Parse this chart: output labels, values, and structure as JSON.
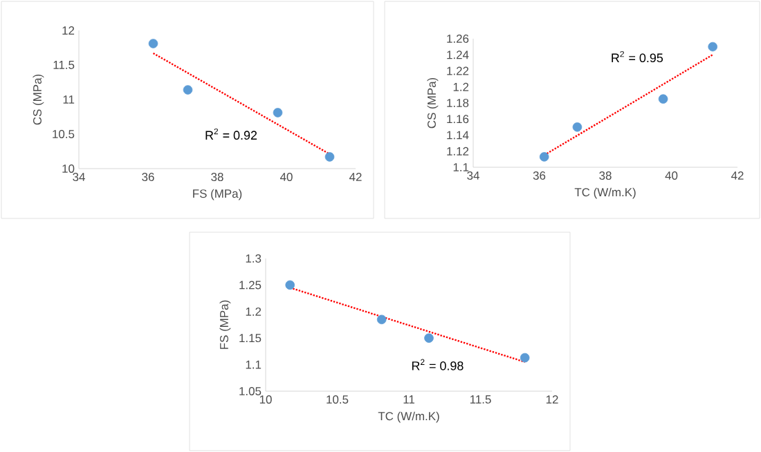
{
  "chart_data": [
    {
      "type": "scatter",
      "xlabel": "FS (MPa)",
      "ylabel": "CS (MPa)",
      "xlim": [
        34,
        42
      ],
      "xticks": [
        34,
        36,
        38,
        40,
        42
      ],
      "ylim": [
        10,
        12
      ],
      "yticks": [
        10,
        10.5,
        11,
        11.5,
        12
      ],
      "annotations": [
        "R$^{2}$ = 0.92"
      ],
      "series": [
        {
          "marker": "circle",
          "color": "#5b9bd5",
          "x": [
            36.15,
            37.15,
            39.75,
            41.25
          ],
          "values": [
            11.81,
            11.14,
            10.81,
            10.17
          ]
        },
        {
          "type": "line",
          "color": "#ff0000",
          "line_style": "dotted",
          "x": [
            36.15,
            41.25
          ],
          "values": [
            11.67,
            10.21
          ]
        }
      ]
    },
    {
      "type": "scatter",
      "xlabel": "TC  (W/m.K)",
      "ylabel": "CS (MPa)",
      "xlim": [
        34,
        42
      ],
      "xticks": [
        34,
        36,
        38,
        40,
        42
      ],
      "ylim": [
        1.1,
        1.26
      ],
      "yticks": [
        1.1,
        1.12,
        1.14,
        1.16,
        1.18,
        1.2,
        1.22,
        1.24,
        1.26
      ],
      "annotations": [
        "R$^{2}$ = 0.95"
      ],
      "series": [
        {
          "marker": "circle",
          "color": "#5b9bd5",
          "x": [
            36.15,
            37.15,
            39.75,
            41.25
          ],
          "values": [
            1.113,
            1.15,
            1.185,
            1.25
          ]
        },
        {
          "type": "line",
          "color": "#ff0000",
          "line_style": "dotted",
          "x": [
            36.15,
            41.25
          ],
          "values": [
            1.115,
            1.24
          ]
        }
      ]
    },
    {
      "type": "scatter",
      "xlabel": "TC  (W/m.K)",
      "ylabel": "FS (MPa)",
      "xlim": [
        10,
        12
      ],
      "xticks": [
        10,
        10.5,
        11,
        11.5,
        12
      ],
      "ylim": [
        1.05,
        1.3
      ],
      "yticks": [
        1.05,
        1.1,
        1.15,
        1.2,
        1.25,
        1.3
      ],
      "annotations": [
        "R$^{2}$ = 0.98"
      ],
      "series": [
        {
          "marker": "circle",
          "color": "#5b9bd5",
          "x": [
            10.17,
            10.81,
            11.14,
            11.81
          ],
          "values": [
            1.25,
            1.185,
            1.15,
            1.113
          ]
        },
        {
          "type": "line",
          "color": "#ff0000",
          "line_style": "dotted",
          "x": [
            10.17,
            11.81
          ],
          "values": [
            1.245,
            1.105
          ]
        }
      ]
    }
  ]
}
